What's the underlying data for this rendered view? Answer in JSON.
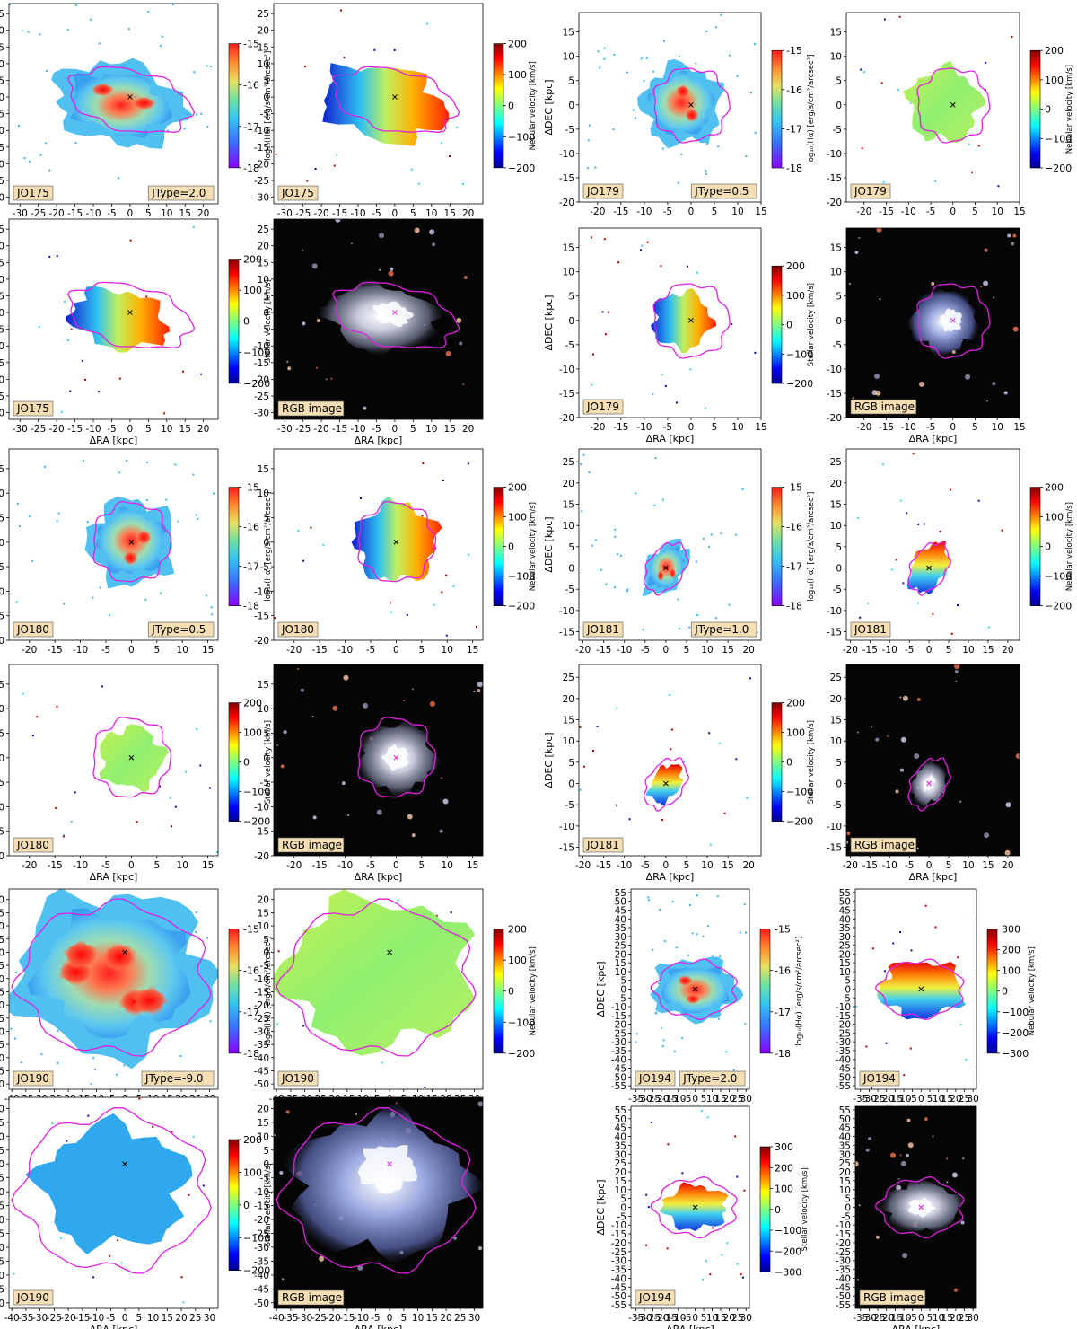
{
  "figure": {
    "xlabel": "ΔRA [kpc]",
    "ylabel": "ΔDEC [kpc]",
    "rgb_label": "RGB image"
  },
  "colorbars": {
    "halpha": {
      "label": "log₁₀(Hα) [erg/s/cm²/arcsec²]",
      "ticks": [
        "-15",
        "-16",
        "-17",
        "-18"
      ]
    },
    "nebular": {
      "label": "Nebular velocity [km/s]",
      "ticks": [
        "200",
        "100",
        "0",
        "−100",
        "−200"
      ]
    },
    "nebular300": {
      "label": "Nebular velocity [km/s]",
      "ticks": [
        "300",
        "200",
        "100",
        "0",
        "−100",
        "−200",
        "−300"
      ]
    },
    "stellar": {
      "label": "Stellar velocity [km/s]",
      "ticks": [
        "200",
        "100",
        "0",
        "−100",
        "−200"
      ]
    },
    "stellar300": {
      "label": "Stellar velocity [km/s]",
      "ticks": [
        "300",
        "200",
        "100",
        "0",
        "−100",
        "−200",
        "−300"
      ]
    }
  },
  "colors": {
    "contour": "#e020e0",
    "label_box": "#f5deb3",
    "rgb_background": "#050505"
  },
  "chart_data": [
    {
      "type": "heatmap",
      "galaxy": "JO175",
      "map": "Hα flux",
      "jtype": "JType=2.0",
      "xlim": [
        -33,
        24
      ],
      "ylim": [
        -32,
        28
      ],
      "xticks": [
        "-30",
        "-25",
        "-20",
        "-15",
        "-10",
        "-5",
        "0",
        "5",
        "10",
        "15",
        "20"
      ],
      "yticks": [
        "25",
        "20",
        "15",
        "10",
        "5",
        "0",
        "-5",
        "-10",
        "-15",
        "-20",
        "-25",
        "-30"
      ]
    },
    {
      "type": "heatmap",
      "galaxy": "JO175",
      "map": "Nebular velocity",
      "xlim": [
        -33,
        24
      ],
      "ylim": [
        -32,
        28
      ]
    },
    {
      "type": "heatmap",
      "galaxy": "JO175",
      "map": "Stellar velocity",
      "xlim": [
        -33,
        24
      ],
      "ylim": [
        -32,
        28
      ]
    },
    {
      "type": "heatmap",
      "galaxy": "JO175",
      "map": "RGB image",
      "xlim": [
        -33,
        24
      ],
      "ylim": [
        -32,
        28
      ]
    },
    {
      "type": "heatmap",
      "galaxy": "JO179",
      "map": "Hα flux",
      "jtype": "JType=0.5",
      "xlim": [
        -24,
        15
      ],
      "ylim": [
        -20,
        19
      ],
      "xticks": [
        "-20",
        "-15",
        "-10",
        "-5",
        "0",
        "5",
        "10",
        "15"
      ],
      "yticks": [
        "15",
        "10",
        "5",
        "0",
        "-5",
        "-10",
        "-15",
        "-20"
      ]
    },
    {
      "type": "heatmap",
      "galaxy": "JO179",
      "map": "Nebular velocity",
      "xlim": [
        -24,
        15
      ],
      "ylim": [
        -20,
        19
      ]
    },
    {
      "type": "heatmap",
      "galaxy": "JO179",
      "map": "Stellar velocity",
      "xlim": [
        -24,
        15
      ],
      "ylim": [
        -20,
        19
      ]
    },
    {
      "type": "heatmap",
      "galaxy": "JO179",
      "map": "RGB image",
      "xlim": [
        -24,
        15
      ],
      "ylim": [
        -20,
        19
      ]
    },
    {
      "type": "heatmap",
      "galaxy": "JO180",
      "map": "Hα flux",
      "jtype": "JType=0.5",
      "xlim": [
        -24,
        17
      ],
      "ylim": [
        -20,
        19
      ],
      "xticks": [
        "-20",
        "-15",
        "-10",
        "-5",
        "0",
        "5",
        "10",
        "15"
      ],
      "yticks": [
        "15",
        "10",
        "5",
        "0",
        "-5",
        "-10",
        "-15",
        "-20"
      ]
    },
    {
      "type": "heatmap",
      "galaxy": "JO180",
      "map": "Nebular velocity",
      "xlim": [
        -24,
        17
      ],
      "ylim": [
        -20,
        19
      ]
    },
    {
      "type": "heatmap",
      "galaxy": "JO180",
      "map": "Stellar velocity",
      "xlim": [
        -24,
        17
      ],
      "ylim": [
        -20,
        19
      ]
    },
    {
      "type": "heatmap",
      "galaxy": "JO180",
      "map": "RGB image",
      "xlim": [
        -24,
        17
      ],
      "ylim": [
        -20,
        19
      ]
    },
    {
      "type": "heatmap",
      "galaxy": "JO181",
      "map": "Hα flux",
      "jtype": "JType=1.0",
      "xlim": [
        -21,
        23
      ],
      "ylim": [
        -17,
        28
      ],
      "xticks": [
        "-20",
        "-15",
        "-10",
        "-5",
        "0",
        "5",
        "10",
        "15",
        "20"
      ],
      "yticks": [
        "25",
        "20",
        "15",
        "10",
        "5",
        "0",
        "-5",
        "-10",
        "-15"
      ]
    },
    {
      "type": "heatmap",
      "galaxy": "JO181",
      "map": "Nebular velocity",
      "xlim": [
        -21,
        23
      ],
      "ylim": [
        -17,
        28
      ]
    },
    {
      "type": "heatmap",
      "galaxy": "JO181",
      "map": "Stellar velocity",
      "xlim": [
        -21,
        23
      ],
      "ylim": [
        -17,
        28
      ]
    },
    {
      "type": "heatmap",
      "galaxy": "JO181",
      "map": "RGB image",
      "xlim": [
        -21,
        23
      ],
      "ylim": [
        -17,
        28
      ]
    },
    {
      "type": "heatmap",
      "galaxy": "JO190",
      "map": "Hα flux",
      "jtype": "JType=-9.0",
      "xlim": [
        -41,
        33
      ],
      "ylim": [
        -52,
        24
      ],
      "xticks": [
        "-40",
        "-35",
        "-30",
        "-25",
        "-20",
        "-15",
        "-10",
        "-5",
        "0",
        "5",
        "10",
        "15",
        "20",
        "25",
        "30"
      ],
      "yticks": [
        "20",
        "15",
        "10",
        "5",
        "0",
        "-5",
        "-10",
        "-15",
        "-20",
        "-25",
        "-30",
        "-35",
        "-40",
        "-45",
        "-50"
      ]
    },
    {
      "type": "heatmap",
      "galaxy": "JO190",
      "map": "Nebular velocity",
      "xlim": [
        -41,
        33
      ],
      "ylim": [
        -52,
        24
      ]
    },
    {
      "type": "heatmap",
      "galaxy": "JO190",
      "map": "Stellar velocity",
      "xlim": [
        -41,
        33
      ],
      "ylim": [
        -52,
        24
      ]
    },
    {
      "type": "heatmap",
      "galaxy": "JO190",
      "map": "RGB image",
      "xlim": [
        -41,
        33
      ],
      "ylim": [
        -52,
        24
      ]
    },
    {
      "type": "heatmap",
      "galaxy": "JO194",
      "map": "Hα flux",
      "jtype": "JType=2.0",
      "xlim": [
        -38,
        32
      ],
      "ylim": [
        -57,
        57
      ],
      "xticks": [
        "-35",
        "-30",
        "-25",
        "-20",
        "-15",
        "-10",
        "-5",
        "0",
        "5",
        "10",
        "15",
        "20",
        "25",
        "30"
      ],
      "yticks": [
        "55",
        "50",
        "45",
        "40",
        "35",
        "30",
        "25",
        "20",
        "15",
        "10",
        "5",
        "0",
        "-5",
        "-10",
        "-15",
        "-20",
        "-25",
        "-30",
        "-35",
        "-40",
        "-45",
        "-50",
        "-55"
      ]
    },
    {
      "type": "heatmap",
      "galaxy": "JO194",
      "map": "Nebular velocity",
      "xlim": [
        -38,
        32
      ],
      "ylim": [
        -57,
        57
      ]
    },
    {
      "type": "heatmap",
      "galaxy": "JO194",
      "map": "Stellar velocity",
      "xlim": [
        -38,
        32
      ],
      "ylim": [
        -57,
        57
      ]
    },
    {
      "type": "heatmap",
      "galaxy": "JO194",
      "map": "RGB image",
      "xlim": [
        -38,
        32
      ],
      "ylim": [
        -57,
        57
      ]
    }
  ]
}
